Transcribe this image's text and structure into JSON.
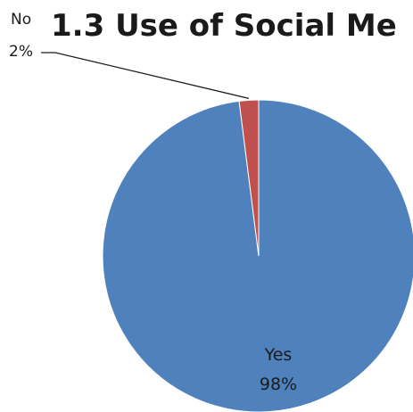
{
  "chart_data": {
    "type": "pie",
    "title": "1.3 Use of Social Me",
    "slices": [
      {
        "label": "Yes",
        "value_label": "98%",
        "value": 98,
        "color": "#4f81bd"
      },
      {
        "label": "No",
        "value_label": "2%",
        "value": 2,
        "color": "#c0504d"
      }
    ],
    "legend": "none",
    "data_labels": "category and percentage"
  }
}
